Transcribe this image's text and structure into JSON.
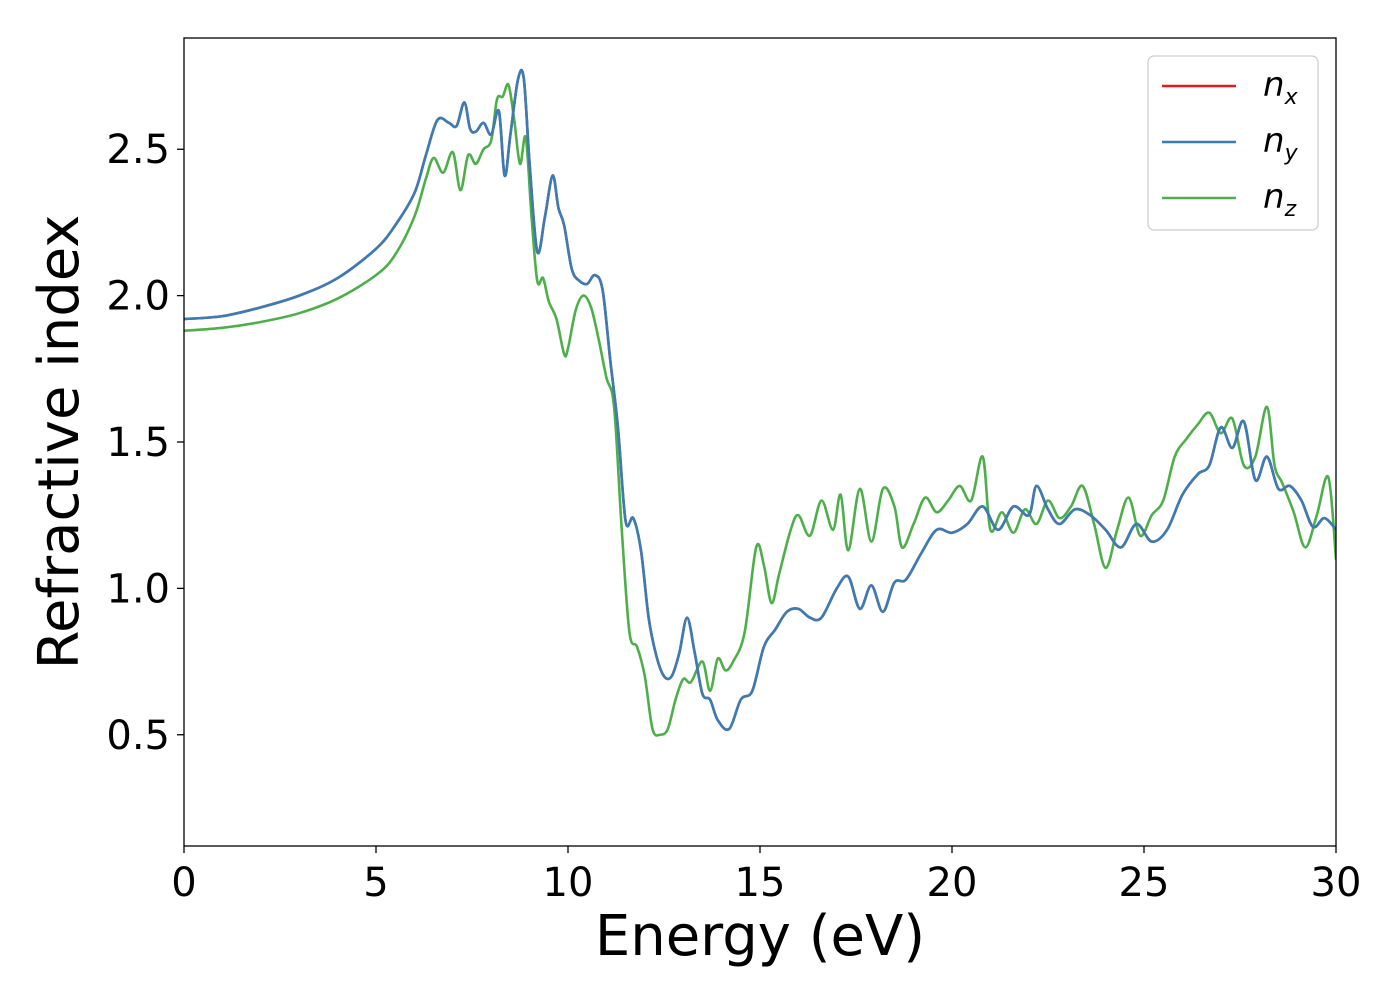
{
  "chart_data": {
    "type": "line",
    "title": "",
    "xlabel": "Energy (eV)",
    "ylabel": "Refractive index",
    "xlim": [
      0,
      30
    ],
    "ylim": [
      0.12,
      2.88
    ],
    "x_ticks": [
      "0",
      "5",
      "10",
      "15",
      "20",
      "25",
      "30"
    ],
    "y_ticks": [
      "0.5",
      "1.0",
      "1.5",
      "2.0",
      "2.5"
    ],
    "legend_position": "top-right",
    "grid": false,
    "series": [
      {
        "name": "n_x",
        "label_base": "n",
        "label_sub": "x",
        "color": "#e41a1c",
        "x": [
          0,
          1,
          2,
          3,
          4,
          5,
          5.5,
          6,
          6.3,
          6.6,
          6.9,
          7.1,
          7.3,
          7.45,
          7.6,
          7.8,
          8.0,
          8.2,
          8.35,
          8.5,
          8.7,
          8.85,
          9.0,
          9.2,
          9.4,
          9.6,
          9.75,
          9.9,
          10.1,
          10.3,
          10.5,
          10.7,
          10.9,
          11.1,
          11.3,
          11.5,
          11.7,
          11.9,
          12.1,
          12.3,
          12.5,
          12.7,
          12.9,
          13.1,
          13.3,
          13.5,
          13.7,
          13.9,
          14.2,
          14.5,
          14.8,
          15.1,
          15.4,
          15.7,
          16.0,
          16.3,
          16.6,
          17.0,
          17.3,
          17.6,
          17.9,
          18.2,
          18.5,
          18.8,
          19.2,
          19.6,
          20.0,
          20.4,
          20.8,
          21.2,
          21.6,
          22.0,
          22.2,
          22.5,
          22.8,
          23.2,
          23.6,
          24.0,
          24.4,
          24.8,
          25.2,
          25.6,
          26.0,
          26.4,
          26.7,
          27.0,
          27.3,
          27.6,
          27.9,
          28.2,
          28.5,
          28.8,
          29.1,
          29.4,
          29.7,
          30.0
        ],
        "y": [
          1.92,
          1.93,
          1.96,
          2.0,
          2.06,
          2.16,
          2.24,
          2.35,
          2.48,
          2.6,
          2.59,
          2.58,
          2.66,
          2.57,
          2.56,
          2.59,
          2.55,
          2.63,
          2.41,
          2.55,
          2.74,
          2.74,
          2.45,
          2.15,
          2.27,
          2.41,
          2.3,
          2.24,
          2.09,
          2.05,
          2.04,
          2.07,
          2.02,
          1.78,
          1.55,
          1.23,
          1.24,
          1.13,
          0.9,
          0.77,
          0.7,
          0.7,
          0.78,
          0.9,
          0.78,
          0.64,
          0.62,
          0.55,
          0.52,
          0.62,
          0.65,
          0.8,
          0.86,
          0.92,
          0.93,
          0.9,
          0.9,
          1.0,
          1.04,
          0.93,
          1.01,
          0.92,
          1.02,
          1.03,
          1.12,
          1.2,
          1.19,
          1.22,
          1.28,
          1.2,
          1.28,
          1.25,
          1.35,
          1.27,
          1.22,
          1.27,
          1.25,
          1.2,
          1.14,
          1.22,
          1.16,
          1.2,
          1.32,
          1.39,
          1.42,
          1.55,
          1.48,
          1.57,
          1.37,
          1.45,
          1.34,
          1.35,
          1.3,
          1.21,
          1.24,
          1.2
        ]
      },
      {
        "name": "n_y",
        "label_base": "n",
        "label_sub": "y",
        "color": "#377eb8",
        "x": [
          0,
          1,
          2,
          3,
          4,
          5,
          5.5,
          6,
          6.3,
          6.6,
          6.9,
          7.1,
          7.3,
          7.45,
          7.6,
          7.8,
          8.0,
          8.2,
          8.35,
          8.5,
          8.7,
          8.85,
          9.0,
          9.2,
          9.4,
          9.6,
          9.75,
          9.9,
          10.1,
          10.3,
          10.5,
          10.7,
          10.9,
          11.1,
          11.3,
          11.5,
          11.7,
          11.9,
          12.1,
          12.3,
          12.5,
          12.7,
          12.9,
          13.1,
          13.3,
          13.5,
          13.7,
          13.9,
          14.2,
          14.5,
          14.8,
          15.1,
          15.4,
          15.7,
          16.0,
          16.3,
          16.6,
          17.0,
          17.3,
          17.6,
          17.9,
          18.2,
          18.5,
          18.8,
          19.2,
          19.6,
          20.0,
          20.4,
          20.8,
          21.2,
          21.6,
          22.0,
          22.2,
          22.5,
          22.8,
          23.2,
          23.6,
          24.0,
          24.4,
          24.8,
          25.2,
          25.6,
          26.0,
          26.4,
          26.7,
          27.0,
          27.3,
          27.6,
          27.9,
          28.2,
          28.5,
          28.8,
          29.1,
          29.4,
          29.7,
          30.0
        ],
        "y": [
          1.92,
          1.93,
          1.96,
          2.0,
          2.06,
          2.16,
          2.24,
          2.35,
          2.48,
          2.6,
          2.59,
          2.58,
          2.66,
          2.57,
          2.56,
          2.59,
          2.55,
          2.63,
          2.41,
          2.55,
          2.74,
          2.74,
          2.45,
          2.15,
          2.27,
          2.41,
          2.3,
          2.24,
          2.09,
          2.05,
          2.04,
          2.07,
          2.02,
          1.78,
          1.55,
          1.23,
          1.24,
          1.13,
          0.9,
          0.77,
          0.7,
          0.7,
          0.78,
          0.9,
          0.78,
          0.64,
          0.62,
          0.55,
          0.52,
          0.62,
          0.65,
          0.8,
          0.86,
          0.92,
          0.93,
          0.9,
          0.9,
          1.0,
          1.04,
          0.93,
          1.01,
          0.92,
          1.02,
          1.03,
          1.12,
          1.2,
          1.19,
          1.22,
          1.28,
          1.2,
          1.28,
          1.25,
          1.35,
          1.27,
          1.22,
          1.27,
          1.25,
          1.2,
          1.14,
          1.22,
          1.16,
          1.2,
          1.32,
          1.39,
          1.42,
          1.55,
          1.48,
          1.57,
          1.37,
          1.45,
          1.34,
          1.35,
          1.3,
          1.21,
          1.24,
          1.2
        ]
      },
      {
        "name": "n_z",
        "label_base": "n",
        "label_sub": "z",
        "color": "#4daf4a",
        "x": [
          0,
          1,
          2,
          3,
          4,
          5,
          5.5,
          6,
          6.3,
          6.5,
          6.75,
          7.0,
          7.2,
          7.4,
          7.6,
          7.8,
          8.0,
          8.15,
          8.3,
          8.45,
          8.6,
          8.75,
          8.9,
          9.05,
          9.2,
          9.35,
          9.5,
          9.7,
          9.9,
          10.0,
          10.2,
          10.4,
          10.6,
          10.8,
          11.0,
          11.2,
          11.4,
          11.6,
          11.8,
          12.0,
          12.2,
          12.4,
          12.6,
          12.8,
          13.0,
          13.2,
          13.5,
          13.7,
          13.9,
          14.1,
          14.3,
          14.6,
          14.9,
          15.1,
          15.3,
          15.5,
          15.8,
          16.0,
          16.3,
          16.6,
          16.9,
          17.1,
          17.3,
          17.6,
          17.9,
          18.2,
          18.5,
          18.7,
          19.0,
          19.3,
          19.6,
          19.9,
          20.2,
          20.5,
          20.8,
          21.0,
          21.3,
          21.6,
          21.9,
          22.2,
          22.5,
          22.8,
          23.1,
          23.4,
          23.7,
          24.0,
          24.3,
          24.6,
          24.9,
          25.2,
          25.5,
          25.8,
          26.1,
          26.4,
          26.7,
          27.0,
          27.3,
          27.6,
          27.9,
          28.2,
          28.4,
          28.6,
          28.9,
          29.2,
          29.5,
          29.8,
          30.0
        ],
        "y": [
          1.88,
          1.89,
          1.91,
          1.94,
          1.99,
          2.07,
          2.14,
          2.27,
          2.4,
          2.47,
          2.42,
          2.49,
          2.36,
          2.48,
          2.45,
          2.5,
          2.53,
          2.67,
          2.68,
          2.72,
          2.6,
          2.45,
          2.54,
          2.27,
          2.05,
          2.06,
          1.98,
          1.92,
          1.8,
          1.82,
          1.95,
          2.0,
          1.96,
          1.85,
          1.72,
          1.62,
          1.2,
          0.85,
          0.8,
          0.7,
          0.52,
          0.5,
          0.52,
          0.62,
          0.69,
          0.68,
          0.75,
          0.65,
          0.76,
          0.72,
          0.75,
          0.85,
          1.14,
          1.08,
          0.95,
          1.05,
          1.2,
          1.25,
          1.18,
          1.3,
          1.2,
          1.32,
          1.13,
          1.34,
          1.16,
          1.34,
          1.28,
          1.14,
          1.22,
          1.31,
          1.26,
          1.3,
          1.35,
          1.3,
          1.45,
          1.2,
          1.26,
          1.19,
          1.27,
          1.22,
          1.3,
          1.24,
          1.28,
          1.35,
          1.22,
          1.07,
          1.2,
          1.31,
          1.18,
          1.25,
          1.3,
          1.45,
          1.51,
          1.56,
          1.6,
          1.53,
          1.58,
          1.42,
          1.45,
          1.62,
          1.42,
          1.36,
          1.26,
          1.14,
          1.25,
          1.38,
          1.1
        ]
      }
    ]
  }
}
